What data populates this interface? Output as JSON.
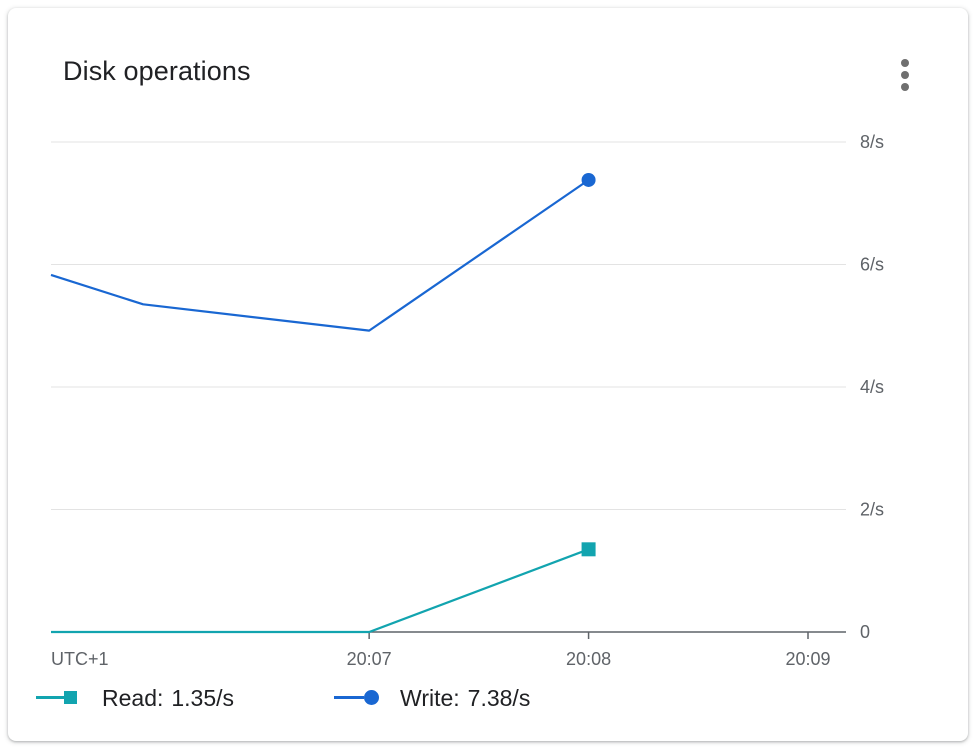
{
  "card": {
    "title": "Disk operations",
    "menu_icon": "more-vert-icon"
  },
  "chart_data": {
    "type": "line",
    "title": "Disk operations",
    "xlabel": "",
    "ylabel": "",
    "timezone_label": "UTC+1",
    "x_ticks": [
      "20:07",
      "20:08",
      "20:09"
    ],
    "x_tick_minutes": [
      7,
      8,
      9
    ],
    "xlim_minutes": [
      5.55,
      9.0
    ],
    "y_ticks": [
      {
        "value": 0,
        "label": "0"
      },
      {
        "value": 2,
        "label": "2/s"
      },
      {
        "value": 4,
        "label": "4/s"
      },
      {
        "value": 6,
        "label": "6/s"
      },
      {
        "value": 8,
        "label": "8/s"
      }
    ],
    "ylim": [
      0,
      8
    ],
    "grid": true,
    "legend_position": "bottom",
    "series": [
      {
        "name": "Read",
        "color": "#12a4af",
        "marker": "square",
        "x_minutes": [
          5.55,
          7.0,
          8.0
        ],
        "values": [
          0,
          0,
          1.35
        ],
        "latest_label": "1.35/s"
      },
      {
        "name": "Write",
        "color": "#1967d2",
        "marker": "circle",
        "x_minutes": [
          5.55,
          5.97,
          7.0,
          8.0
        ],
        "values": [
          5.83,
          5.35,
          4.92,
          7.38
        ],
        "latest_label": "7.38/s"
      }
    ]
  }
}
